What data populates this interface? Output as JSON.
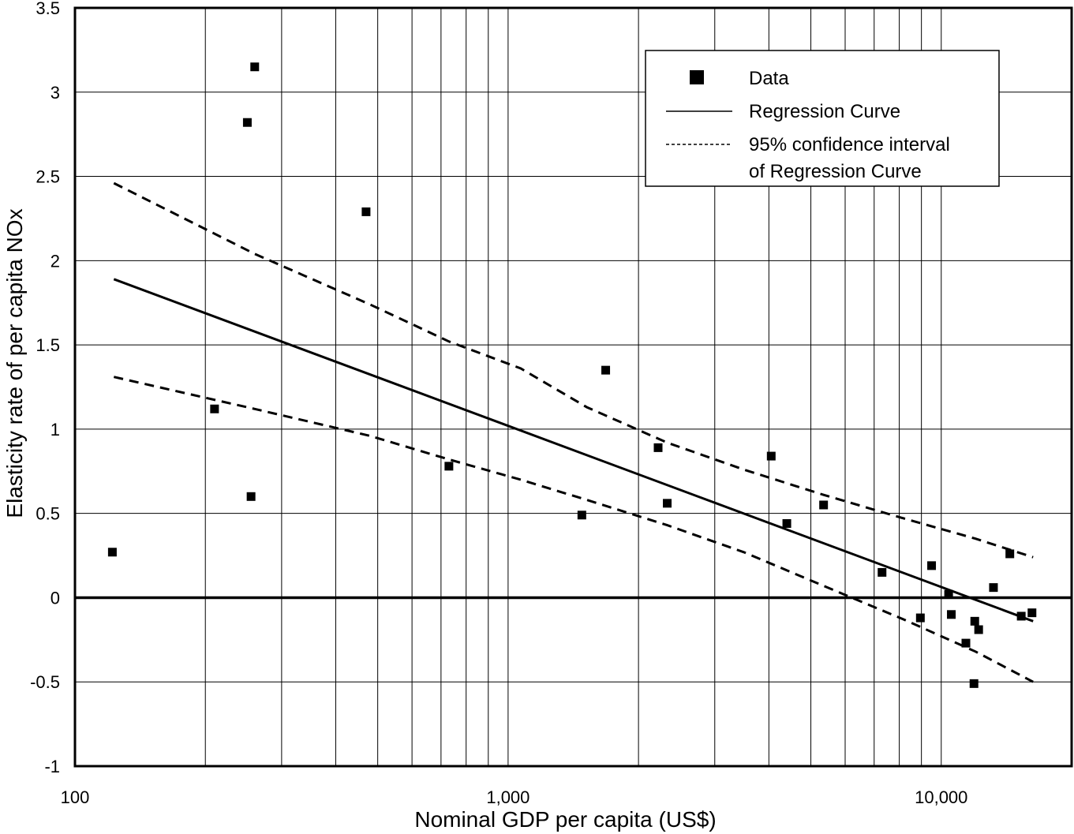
{
  "chart_data": {
    "type": "scatter",
    "xlabel": "Nominal GDP per capita (US$)",
    "ylabel": "Elasticity rate of per capita NOx",
    "x_scale": "log",
    "xlim": [
      100,
      20000
    ],
    "ylim": [
      -1,
      3.5
    ],
    "x_ticks": [
      {
        "value": 100,
        "label": "100"
      },
      {
        "value": 1000,
        "label": "1,000"
      },
      {
        "value": 10000,
        "label": "10,000"
      }
    ],
    "y_ticks": [
      {
        "value": 3.5,
        "label": "3.5"
      },
      {
        "value": 3,
        "label": "3"
      },
      {
        "value": 2.5,
        "label": "2.5"
      },
      {
        "value": 2,
        "label": "2"
      },
      {
        "value": 1.5,
        "label": "1.5"
      },
      {
        "value": 1,
        "label": "1"
      },
      {
        "value": 0.5,
        "label": "0.5"
      },
      {
        "value": 0,
        "label": "0"
      },
      {
        "value": -0.5,
        "label": "-0.5"
      },
      {
        "value": -1,
        "label": "-1"
      }
    ],
    "grid": true,
    "legend_position": "top-right",
    "legend": {
      "data": "Data",
      "regression": "Regression Curve",
      "ci_line1": "95% confidence interval",
      "ci_line2": "of Regression Curve"
    },
    "points": [
      {
        "x": 122,
        "y": 0.27
      },
      {
        "x": 210,
        "y": 1.12
      },
      {
        "x": 250,
        "y": 2.82
      },
      {
        "x": 255,
        "y": 0.6
      },
      {
        "x": 260,
        "y": 3.15
      },
      {
        "x": 470,
        "y": 2.29
      },
      {
        "x": 730,
        "y": 0.78
      },
      {
        "x": 1480,
        "y": 0.49
      },
      {
        "x": 1680,
        "y": 1.35
      },
      {
        "x": 2220,
        "y": 0.89
      },
      {
        "x": 2330,
        "y": 0.56
      },
      {
        "x": 4050,
        "y": 0.84
      },
      {
        "x": 4400,
        "y": 0.44
      },
      {
        "x": 5350,
        "y": 0.55
      },
      {
        "x": 7300,
        "y": 0.15
      },
      {
        "x": 8950,
        "y": -0.12
      },
      {
        "x": 9500,
        "y": 0.19
      },
      {
        "x": 10400,
        "y": 0.02
      },
      {
        "x": 10550,
        "y": -0.1
      },
      {
        "x": 11400,
        "y": -0.27
      },
      {
        "x": 11900,
        "y": -0.51
      },
      {
        "x": 11950,
        "y": -0.14
      },
      {
        "x": 12200,
        "y": -0.19
      },
      {
        "x": 13200,
        "y": 0.06
      },
      {
        "x": 14400,
        "y": 0.26
      },
      {
        "x": 15300,
        "y": -0.11
      },
      {
        "x": 16200,
        "y": -0.09
      }
    ],
    "regression_curve": [
      {
        "x": 123,
        "y": 1.89
      },
      {
        "x": 16300,
        "y": -0.14
      }
    ],
    "ci_upper": [
      {
        "x": 123,
        "y": 2.46
      },
      {
        "x": 260,
        "y": 2.04
      },
      {
        "x": 480,
        "y": 1.74
      },
      {
        "x": 730,
        "y": 1.52
      },
      {
        "x": 1070,
        "y": 1.36
      },
      {
        "x": 1520,
        "y": 1.13
      },
      {
        "x": 2330,
        "y": 0.92
      },
      {
        "x": 3500,
        "y": 0.76
      },
      {
        "x": 5350,
        "y": 0.61
      },
      {
        "x": 8200,
        "y": 0.47
      },
      {
        "x": 12000,
        "y": 0.35
      },
      {
        "x": 16300,
        "y": 0.24
      }
    ],
    "ci_lower": [
      {
        "x": 123,
        "y": 1.31
      },
      {
        "x": 260,
        "y": 1.12
      },
      {
        "x": 480,
        "y": 0.96
      },
      {
        "x": 730,
        "y": 0.82
      },
      {
        "x": 1070,
        "y": 0.7
      },
      {
        "x": 1520,
        "y": 0.58
      },
      {
        "x": 2330,
        "y": 0.43
      },
      {
        "x": 3500,
        "y": 0.27
      },
      {
        "x": 5350,
        "y": 0.07
      },
      {
        "x": 8200,
        "y": -0.13
      },
      {
        "x": 12000,
        "y": -0.32
      },
      {
        "x": 16300,
        "y": -0.5
      }
    ]
  }
}
